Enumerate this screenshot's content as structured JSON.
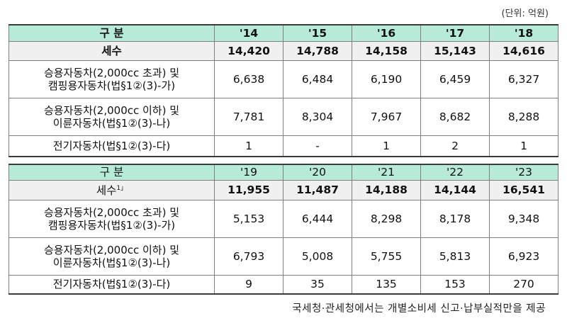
{
  "unit_label": "(단위: 억원)",
  "table1": {
    "header": {
      "label": "구    분",
      "years": [
        "'14",
        "'15",
        "'16",
        "'17",
        "'18"
      ]
    },
    "total": {
      "label": "세수",
      "values": [
        "14,420",
        "14,788",
        "14,158",
        "15,143",
        "14,616"
      ]
    },
    "rows": [
      {
        "label_line1": "승용자동차(2,000cc 초과) 및",
        "label_line2": "캠핑용자동차(법§1②(3)-가)",
        "values": [
          "6,638",
          "6,484",
          "6,190",
          "6,459",
          "6,327"
        ]
      },
      {
        "label_line1": "승용자동차(2,000cc 이하) 및",
        "label_line2": "이륜자동차(법§1②(3)-나)",
        "values": [
          "7,781",
          "8,304",
          "7,967",
          "8,682",
          "8,288"
        ]
      },
      {
        "label_line1": "전기자동차(법§1②(3)-다)",
        "label_line2": "",
        "values": [
          "1",
          "-",
          "1",
          "2",
          "1"
        ]
      }
    ]
  },
  "table2": {
    "header": {
      "label": "구    분",
      "years": [
        "'19",
        "'20",
        "'21",
        "'22",
        "'23"
      ]
    },
    "total": {
      "label": "세수",
      "footnote": "1」",
      "values": [
        "11,955",
        "11,487",
        "14,188",
        "14,144",
        "16,541"
      ]
    },
    "rows": [
      {
        "label_line1": "승용자동차(2,000cc 초과) 및",
        "label_line2": "캠핑용자동차(법§1②(3)-가)",
        "values": [
          "5,153",
          "6,444",
          "8,298",
          "8,178",
          "9,348"
        ]
      },
      {
        "label_line1": "승용자동차(2,000cc 이하) 및",
        "label_line2": "이륜자동차(법§1②(3)-나)",
        "values": [
          "6,793",
          "5,008",
          "5,755",
          "5,813",
          "6,923"
        ]
      },
      {
        "label_line1": "전기자동차(법§1②(3)-다)",
        "label_line2": "",
        "values": [
          "9",
          "35",
          "135",
          "153",
          "270"
        ]
      }
    ]
  },
  "footnote_text": "국세청·관세청에서는 개별소비세 신고·납부실적만을 제공"
}
